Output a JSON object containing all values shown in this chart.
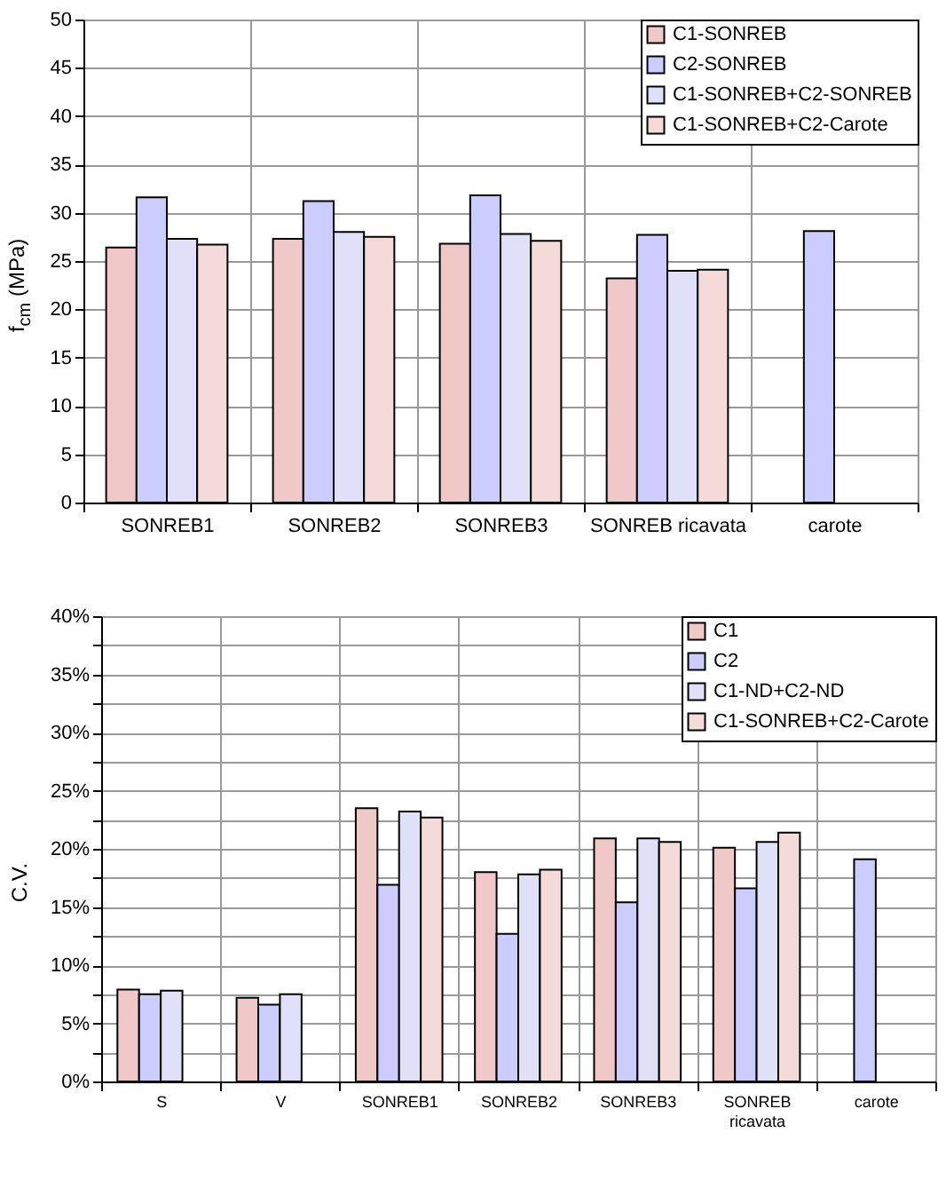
{
  "chart_data": [
    {
      "type": "bar",
      "ylabel": "f$_{cm}$ (MPa)",
      "categories": [
        "SONREB1",
        "SONREB2",
        "SONREB3",
        "SONREB ricavata",
        "carote"
      ],
      "series": [
        {
          "name": "C1-SONREB",
          "color": "#f0c8c8",
          "values": [
            26.4,
            27.3,
            26.8,
            23.2,
            null
          ]
        },
        {
          "name": "C2-SONREB",
          "color": "#ccccff",
          "values": [
            31.6,
            31.2,
            31.8,
            27.7,
            28.1
          ]
        },
        {
          "name": "C1-SONREB+C2-SONREB",
          "color": "#e0e0f8",
          "values": [
            27.3,
            28.0,
            27.8,
            24.0,
            null
          ]
        },
        {
          "name": "C1-SONREB+C2-Carote",
          "color": "#f5dada",
          "values": [
            26.7,
            27.5,
            27.1,
            24.1,
            null
          ]
        }
      ],
      "ylim": [
        0,
        50
      ],
      "yticks": [
        0,
        5,
        10,
        15,
        20,
        25,
        30,
        35,
        40,
        45,
        50
      ],
      "grid": true,
      "legend": "top right"
    },
    {
      "type": "bar",
      "ylabel": "C.V.",
      "categories": [
        "S",
        "V",
        "SONREB1",
        "SONREB2",
        "SONREB3",
        "SONREB ricavata",
        "carote"
      ],
      "series": [
        {
          "name": "C1",
          "color": "#f0c8c8",
          "values": [
            7.9,
            7.2,
            23.5,
            18.0,
            20.9,
            20.1,
            null
          ]
        },
        {
          "name": "C2",
          "color": "#ccccff",
          "values": [
            7.5,
            6.6,
            16.9,
            12.7,
            15.4,
            16.6,
            19.1
          ]
        },
        {
          "name": "C1-ND+C2-ND",
          "color": "#e0e0f8",
          "values": [
            7.8,
            7.5,
            23.2,
            17.8,
            20.9,
            20.6,
            null
          ]
        },
        {
          "name": "C1-SONREB+C2-Carote",
          "color": "#f5dada",
          "values": [
            null,
            null,
            22.7,
            18.2,
            20.6,
            21.4,
            null
          ]
        }
      ],
      "ylim": [
        0,
        40
      ],
      "yticks": [
        {
          "value": 0,
          "label": "0%"
        },
        {
          "value": 2.5,
          "label": null
        },
        {
          "value": 5,
          "label": "5%"
        },
        {
          "value": 7.5,
          "label": null
        },
        {
          "value": 10,
          "label": "10%"
        },
        {
          "value": 12.5,
          "label": null
        },
        {
          "value": 15,
          "label": "15%"
        },
        {
          "value": 17.5,
          "label": null
        },
        {
          "value": 20,
          "label": "20%"
        },
        {
          "value": 22.5,
          "label": null
        },
        {
          "value": 25,
          "label": "25%"
        },
        {
          "value": 27.5,
          "label": null
        },
        {
          "value": 30,
          "label": "30%"
        },
        {
          "value": 32.5,
          "label": null
        },
        {
          "value": 35,
          "label": "35%"
        },
        {
          "value": 37.5,
          "label": null
        },
        {
          "value": 40,
          "label": "40%"
        }
      ],
      "grid": true,
      "legend": "top right"
    }
  ]
}
